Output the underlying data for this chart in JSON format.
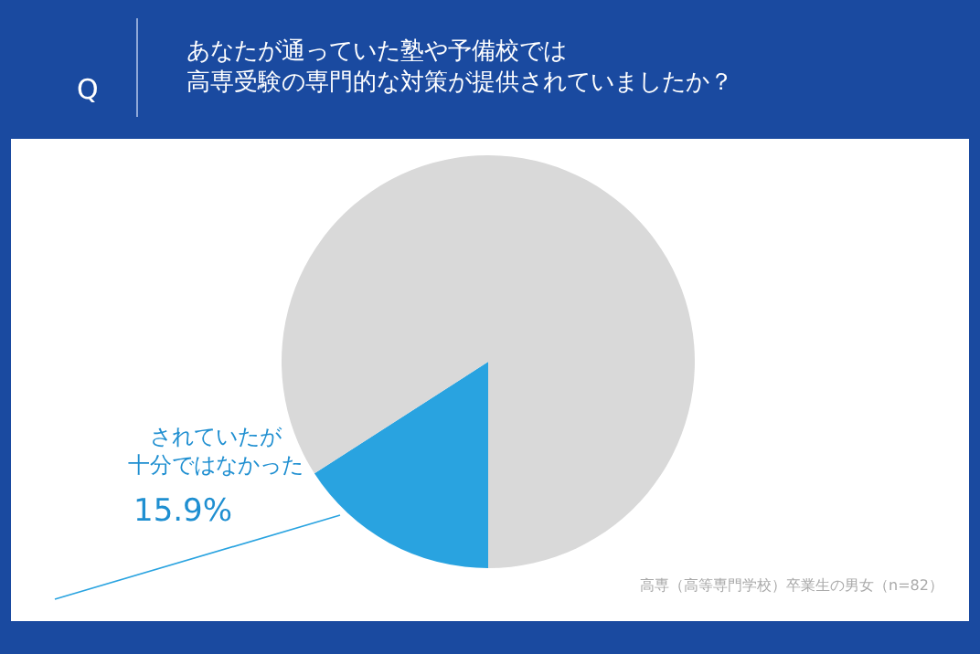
{
  "chart_data": {
    "type": "pie",
    "title": "あなたが通っていた塾や予備校では高専受験の専門的な対策が提供されていましたか？",
    "categories": [
      "されていたが十分ではなかった",
      null
    ],
    "values": [
      15.9,
      84.1
    ],
    "colors": [
      "#29a3e0",
      "#d9d9d9"
    ],
    "value_labels": [
      "15.9%",
      null
    ],
    "annotations": [
      "Q",
      "高専（高等専門学校）卒業生の男女（n=82）"
    ],
    "legend": false
  }
}
